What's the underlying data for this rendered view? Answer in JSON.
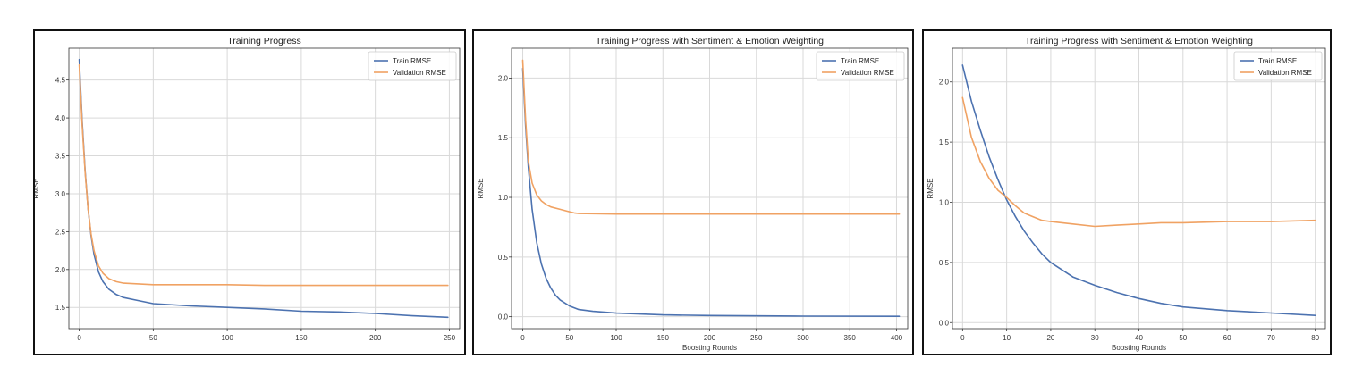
{
  "chart_data": [
    {
      "type": "line",
      "title": "Training Progress",
      "xlabel": "",
      "ylabel": "RMSE",
      "xlim": [
        -7,
        257
      ],
      "ylim": [
        1.22,
        4.92
      ],
      "xticks": [
        0,
        50,
        100,
        150,
        200,
        250
      ],
      "yticks": [
        1.5,
        2.0,
        2.5,
        3.0,
        3.5,
        4.0,
        4.5
      ],
      "ytick_labels": [
        "1.5",
        "2.0",
        "2.5",
        "3.0",
        "3.5",
        "4.0",
        "4.5"
      ],
      "grid": true,
      "legend_position": "top-right",
      "series": [
        {
          "name": "Train RMSE",
          "color": "#4c72b0",
          "x": [
            0,
            2,
            4,
            6,
            8,
            10,
            13,
            16,
            20,
            25,
            30,
            40,
            50,
            75,
            100,
            125,
            150,
            175,
            200,
            225,
            249
          ],
          "y": [
            4.77,
            3.95,
            3.3,
            2.8,
            2.45,
            2.2,
            1.97,
            1.84,
            1.74,
            1.67,
            1.63,
            1.59,
            1.55,
            1.52,
            1.5,
            1.48,
            1.45,
            1.44,
            1.42,
            1.39,
            1.37
          ]
        },
        {
          "name": "Validation RMSE",
          "color": "#f0a263",
          "x": [
            0,
            2,
            4,
            6,
            8,
            10,
            13,
            16,
            20,
            25,
            30,
            40,
            50,
            75,
            100,
            125,
            150,
            175,
            200,
            225,
            249
          ],
          "y": [
            4.7,
            3.9,
            3.28,
            2.8,
            2.47,
            2.25,
            2.05,
            1.95,
            1.88,
            1.84,
            1.82,
            1.81,
            1.8,
            1.8,
            1.8,
            1.79,
            1.79,
            1.79,
            1.79,
            1.79,
            1.79
          ]
        }
      ]
    },
    {
      "type": "line",
      "title": "Training Progress with Sentiment & Emotion Weighting",
      "xlabel": "Boosting Rounds",
      "ylabel": "RMSE",
      "xlim": [
        -12,
        412
      ],
      "ylim": [
        -0.1,
        2.25
      ],
      "xticks": [
        0,
        50,
        100,
        150,
        200,
        250,
        300,
        350,
        400
      ],
      "yticks": [
        0.0,
        0.5,
        1.0,
        1.5,
        2.0
      ],
      "ytick_labels": [
        "0.0",
        "0.5",
        "1.0",
        "1.5",
        "2.0"
      ],
      "grid": true,
      "legend_position": "top-right",
      "series": [
        {
          "name": "Train RMSE",
          "color": "#4c72b0",
          "x": [
            0,
            3,
            6,
            10,
            15,
            20,
            25,
            30,
            35,
            40,
            50,
            60,
            75,
            100,
            150,
            200,
            300,
            403
          ],
          "y": [
            2.08,
            1.6,
            1.25,
            0.9,
            0.62,
            0.44,
            0.32,
            0.24,
            0.18,
            0.14,
            0.09,
            0.06,
            0.045,
            0.03,
            0.015,
            0.01,
            0.005,
            0.003
          ]
        },
        {
          "name": "Validation RMSE",
          "color": "#f0a263",
          "x": [
            0,
            3,
            6,
            10,
            15,
            20,
            25,
            30,
            40,
            50,
            55,
            60,
            100,
            200,
            300,
            403
          ],
          "y": [
            2.15,
            1.65,
            1.3,
            1.12,
            1.02,
            0.97,
            0.94,
            0.92,
            0.9,
            0.88,
            0.87,
            0.865,
            0.86,
            0.86,
            0.86,
            0.86
          ]
        }
      ]
    },
    {
      "type": "line",
      "title": "Training Progress with Sentiment & Emotion Weighting",
      "xlabel": "Boosting Rounds",
      "ylabel": "RMSE",
      "xlim": [
        -2.3,
        82.3
      ],
      "ylim": [
        -0.05,
        2.28
      ],
      "xticks": [
        0,
        10,
        20,
        30,
        40,
        50,
        60,
        70,
        80
      ],
      "yticks": [
        0.0,
        0.5,
        1.0,
        1.5,
        2.0
      ],
      "ytick_labels": [
        "0.0",
        "0.5",
        "1.0",
        "1.5",
        "2.0"
      ],
      "grid": true,
      "legend_position": "top-right",
      "series": [
        {
          "name": "Train RMSE",
          "color": "#4c72b0",
          "x": [
            0,
            2,
            4,
            6,
            8,
            10,
            12,
            14,
            16,
            18,
            20,
            25,
            30,
            35,
            40,
            45,
            50,
            60,
            70,
            80
          ],
          "y": [
            2.14,
            1.84,
            1.6,
            1.38,
            1.19,
            1.02,
            0.88,
            0.76,
            0.66,
            0.57,
            0.5,
            0.38,
            0.31,
            0.25,
            0.2,
            0.16,
            0.13,
            0.1,
            0.08,
            0.06
          ]
        },
        {
          "name": "Validation RMSE",
          "color": "#f0a263",
          "x": [
            0,
            2,
            4,
            6,
            8,
            10,
            12,
            14,
            16,
            18,
            20,
            25,
            30,
            35,
            40,
            45,
            50,
            60,
            70,
            80
          ],
          "y": [
            1.87,
            1.54,
            1.34,
            1.2,
            1.1,
            1.04,
            0.97,
            0.91,
            0.88,
            0.85,
            0.84,
            0.82,
            0.8,
            0.81,
            0.82,
            0.83,
            0.83,
            0.84,
            0.84,
            0.85
          ]
        }
      ]
    }
  ]
}
